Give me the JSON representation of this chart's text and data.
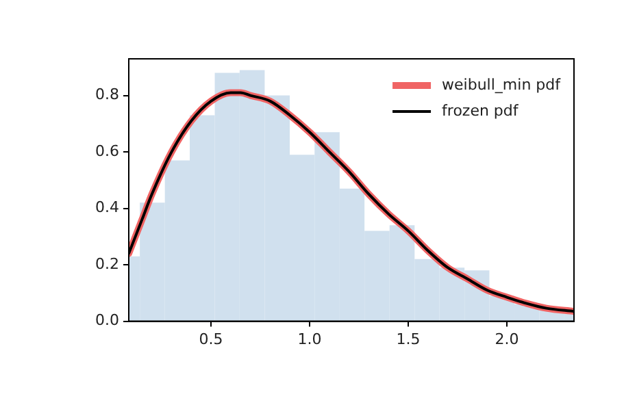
{
  "chart_data": {
    "type": "line",
    "x": [
      0.083,
      0.15,
      0.2,
      0.3,
      0.4,
      0.5,
      0.6,
      0.65,
      0.7,
      0.8,
      0.9,
      1.0,
      1.1,
      1.2,
      1.3,
      1.4,
      1.5,
      1.6,
      1.7,
      1.8,
      1.9,
      2.0,
      2.1,
      2.2,
      2.34
    ],
    "series": [
      {
        "name": "weibull_min pdf",
        "color": "#f06464",
        "values": [
          0.24,
          0.36,
          0.45,
          0.6,
          0.71,
          0.78,
          0.81,
          0.81,
          0.8,
          0.78,
          0.73,
          0.67,
          0.6,
          0.53,
          0.45,
          0.38,
          0.32,
          0.25,
          0.19,
          0.15,
          0.11,
          0.085,
          0.063,
          0.046,
          0.035
        ]
      },
      {
        "name": "frozen pdf",
        "color": "#000000",
        "values": [
          0.24,
          0.36,
          0.45,
          0.6,
          0.71,
          0.78,
          0.81,
          0.81,
          0.8,
          0.78,
          0.73,
          0.67,
          0.6,
          0.53,
          0.45,
          0.38,
          0.32,
          0.25,
          0.19,
          0.15,
          0.11,
          0.085,
          0.063,
          0.046,
          0.035
        ]
      },
      {
        "type": "histogram",
        "color": "#d0e0ee",
        "bins": [
          0.083,
          0.139,
          0.266,
          0.392,
          0.519,
          0.645,
          0.772,
          0.899,
          1.025,
          1.152,
          1.278,
          1.405,
          1.532,
          1.658,
          1.785,
          1.911,
          2.038,
          2.165,
          2.291,
          2.34
        ],
        "values": [
          0.23,
          0.42,
          0.57,
          0.73,
          0.88,
          0.89,
          0.8,
          0.59,
          0.67,
          0.47,
          0.32,
          0.34,
          0.22,
          0.19,
          0.18,
          0.09,
          0.06,
          0.04,
          0.03
        ]
      }
    ],
    "xlim": [
      0.083,
      2.34
    ],
    "xticks": [
      0.5,
      {
        "value": 1.0,
        "label": "1.0"
      },
      1.5,
      {
        "value": 2.0,
        "label": "2.0"
      }
    ],
    "ylim": [
      0,
      0.93
    ],
    "yticks": [
      {
        "value": 0,
        "label": "0.0"
      },
      0.2,
      0.4,
      0.6,
      0.8
    ],
    "legend": "top right",
    "marker": "none",
    "line_style": "solid",
    "grid": false
  }
}
